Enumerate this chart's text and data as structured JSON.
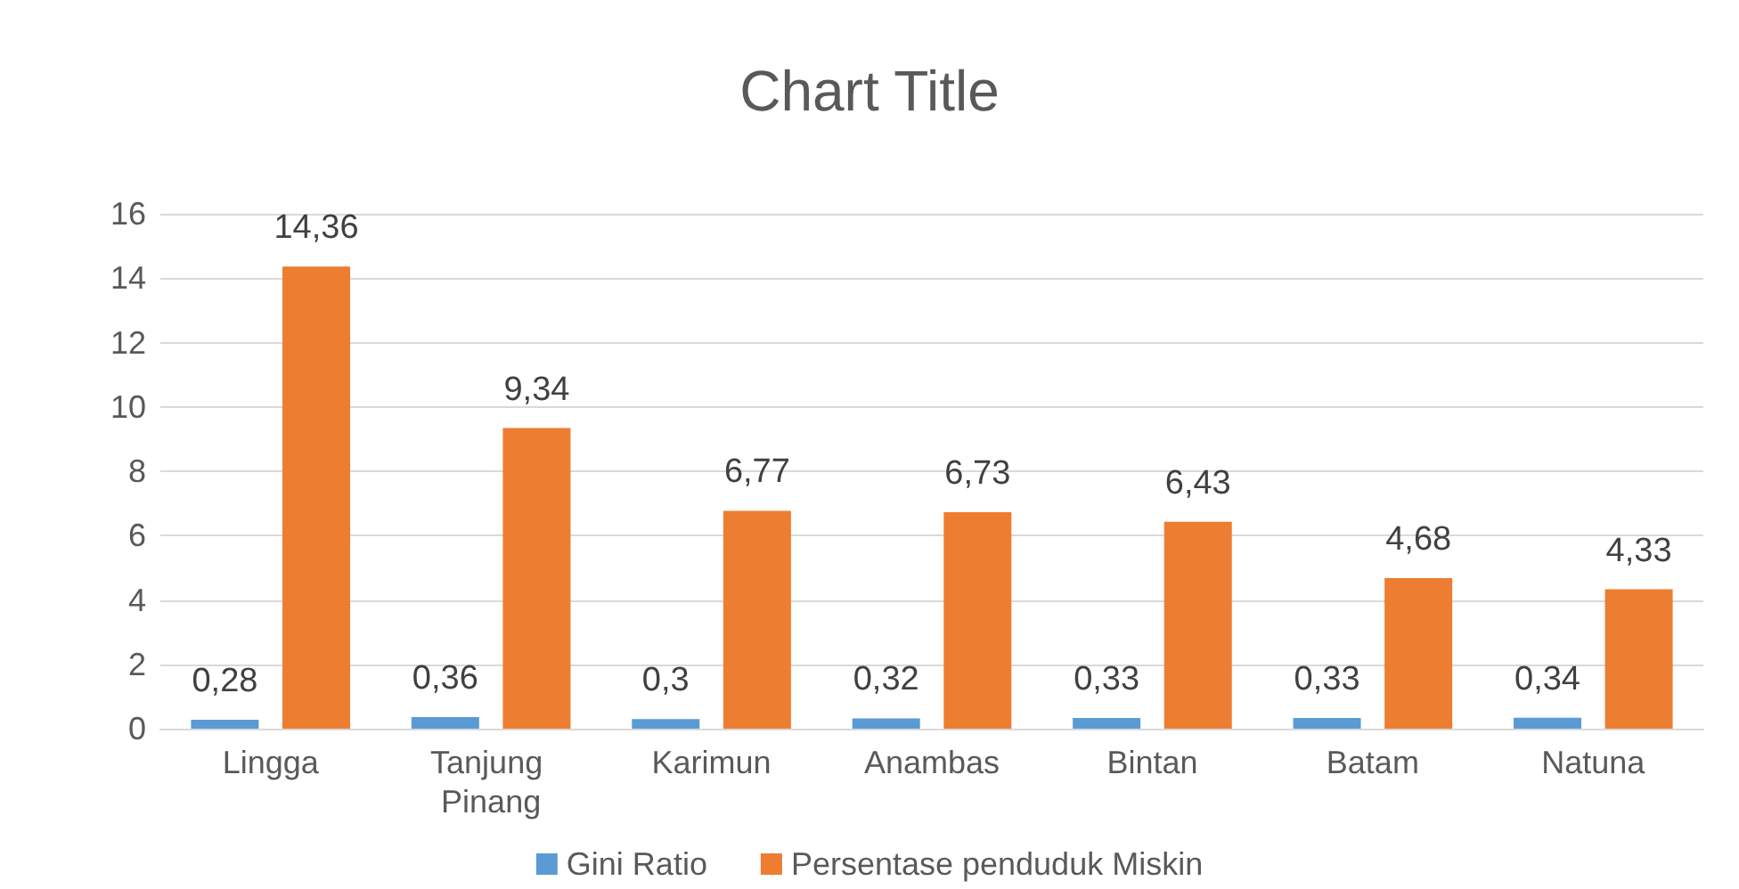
{
  "chart_data": {
    "type": "bar",
    "title": "Chart Title",
    "categories": [
      "Lingga",
      "Tanjung Pinang",
      "Karimun",
      "Anambas",
      "Bintan",
      "Batam",
      "Natuna"
    ],
    "series": [
      {
        "name": "Gini Ratio",
        "color": "#5b9bd5",
        "values": [
          0.28,
          0.36,
          0.3,
          0.32,
          0.33,
          0.33,
          0.34
        ],
        "value_labels": [
          "0,28",
          "0,36",
          "0,3",
          "0,32",
          "0,33",
          "0,33",
          "0,34"
        ]
      },
      {
        "name": "Persentase penduduk Miskin",
        "color": "#ed7d31",
        "values": [
          14.36,
          9.34,
          6.77,
          6.73,
          6.43,
          4.68,
          4.33
        ],
        "value_labels": [
          "14,36",
          "9,34",
          "6,77",
          "6,73",
          "6,43",
          "4,68",
          "4,33"
        ]
      }
    ],
    "ylim": [
      0,
      16
    ],
    "yticks": [
      0,
      2,
      4,
      6,
      8,
      10,
      12,
      14,
      16
    ],
    "grid": "y",
    "legend": "bottom"
  }
}
